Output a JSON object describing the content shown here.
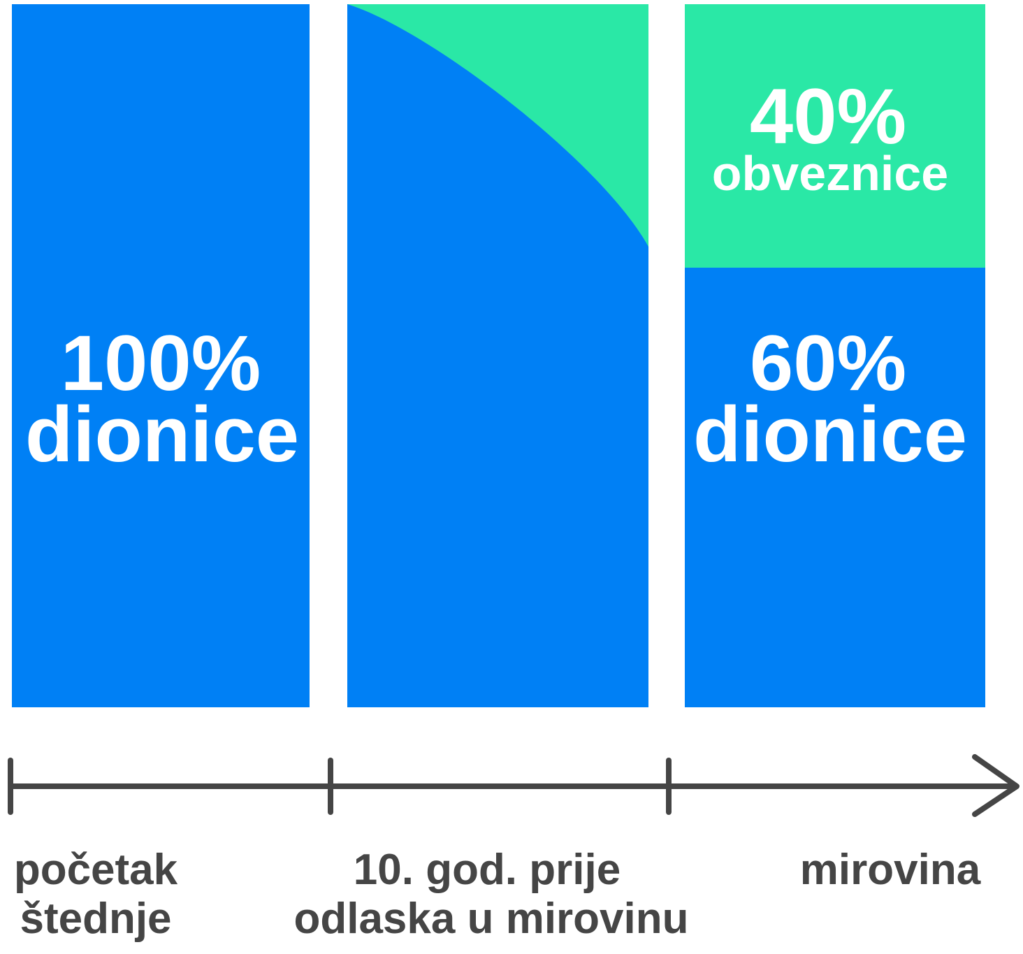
{
  "panels": [
    {
      "lines": [
        "100%",
        "dionice"
      ]
    },
    {
      "lines": []
    },
    {
      "top": [
        "40%",
        "obveznice"
      ],
      "bottom": [
        "60%",
        "dionice"
      ]
    }
  ],
  "timeline": [
    [
      "početak",
      "štednje"
    ],
    [
      "10. god. prije",
      "odlaska u mirovinu"
    ],
    [
      "mirovina"
    ]
  ]
}
